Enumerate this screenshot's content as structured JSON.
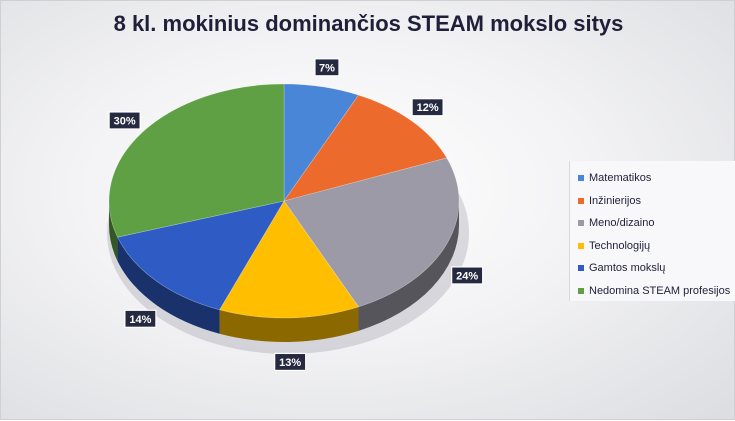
{
  "chart_data": {
    "type": "pie",
    "title": "8 kl. mokinius dominančios STEAM mokslo sitys",
    "slices": [
      {
        "label": "Matematikos",
        "value": 7,
        "display": "7%",
        "color": "#4a86d8"
      },
      {
        "label": "Inžinierijos",
        "value": 12,
        "display": "12%",
        "color": "#ec6a2c"
      },
      {
        "label": "Meno/dizaino",
        "value": 24,
        "display": "24%",
        "color": "#9c9aa6"
      },
      {
        "label": "Technologijų",
        "value": 13,
        "display": "13%",
        "color": "#ffbe00"
      },
      {
        "label": "Gamtos mokslų",
        "value": 14,
        "display": "14%",
        "color": "#2e5bc4"
      },
      {
        "label": "Nedomina STEAM profesijos",
        "value": 30,
        "display": "30%",
        "color": "#5ea043"
      }
    ],
    "legend_position": "right",
    "data_labels": true
  }
}
